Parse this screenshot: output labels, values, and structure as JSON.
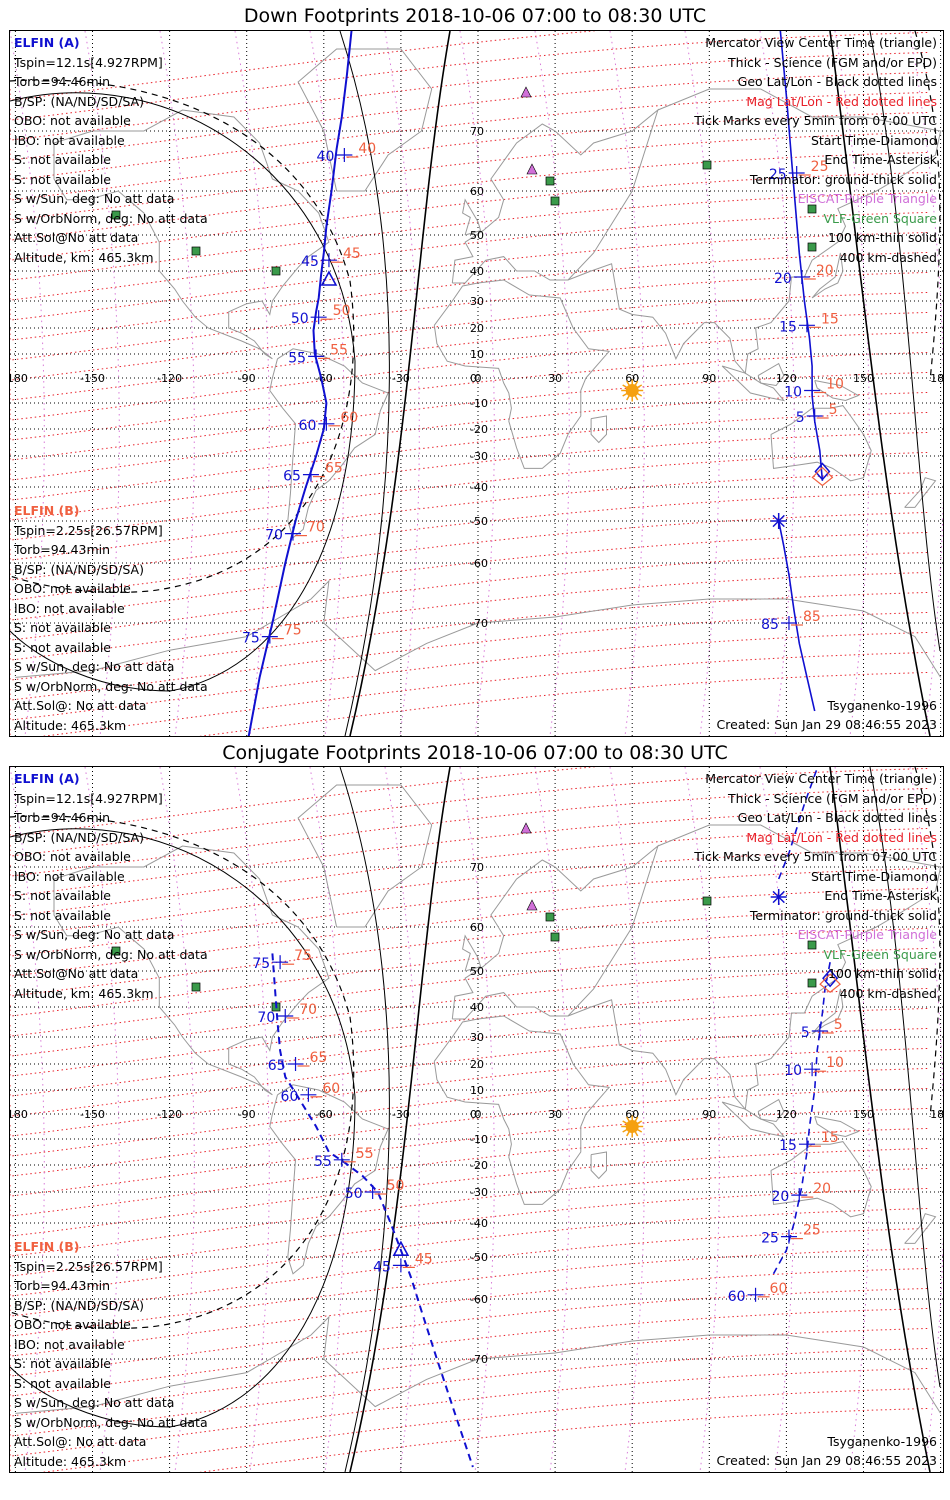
{
  "panels": [
    {
      "title": "Down Footprints 2018-10-06 07:00 to 08:30 UTC",
      "elfin_a": {
        "header": "ELFIN (A)",
        "lines": [
          "Tspin=12.1s[4.927RPM]",
          "Torb=94.46min",
          "B/SP: (NA/ND/SD/SA)",
          "OBO: not available",
          "IBO: not available",
          "S: not available",
          "S: not available",
          "S w/Sun, deg: No att data",
          "S w/OrbNorm, deg: No att data",
          "Att.Sol@No att data",
          "Altitude, km: 465.3km"
        ]
      },
      "elfin_b": {
        "header": "ELFIN (B)",
        "lines": [
          "Tspin=2.25s[26.57RPM]",
          "Torb=94.43min",
          "B/SP: (NA/ND/SD/SA)",
          "OBO: not available",
          "IBO: not available",
          "S: not available",
          "S: not available",
          "S w/Sun, deg: No att data",
          "S w/OrbNorm, deg: No att data",
          "Att.Sol@: No att data",
          "Altitude: 465.3km"
        ]
      },
      "legend": [
        {
          "text": "Mercator View Center Time (triangle)",
          "color": "#000000"
        },
        {
          "text": "Thick - Science (FGM and/or EPD)",
          "color": "#000000"
        },
        {
          "text": "Geo Lat/Lon - Black dotted lines",
          "color": "#000000"
        },
        {
          "text": "Mag Lat/Lon - Red dotted lines",
          "color": "#e8212a"
        },
        {
          "text": "Tick Marks every 5min from 07:00 UTC",
          "color": "#000000"
        },
        {
          "text": "Start Time-Diamond",
          "color": "#000000"
        },
        {
          "text": "End Time-Asterisk",
          "color": "#000000"
        },
        {
          "text": "Terminator: ground-thick solid",
          "color": "#000000"
        },
        {
          "text": "EISCAT-Purple Triangle",
          "color": "#d070d8"
        },
        {
          "text": "VLF-Green Square",
          "color": "#3a9a4a"
        },
        {
          "text": "100 km-thin solid",
          "color": "#000000"
        },
        {
          "text": "400 km-dashed",
          "color": "#000000"
        }
      ],
      "model": "Tsyganenko-1996",
      "created": "Created: Sun Jan 29 08:46:55 2023",
      "lat_labels": [
        "70",
        "60",
        "50",
        "40",
        "30",
        "20",
        "10",
        "0",
        "-10",
        "-20",
        "-30",
        "-40",
        "-50",
        "-60",
        "-70"
      ],
      "lon_labels": [
        "-180",
        "-150",
        "-120",
        "-90",
        "-60",
        "-30",
        "0",
        "30",
        "60",
        "90",
        "120",
        "150",
        "180"
      ],
      "track_a": [
        {
          "lon": -43,
          "lat": 112
        },
        {
          "lon": -46,
          "lat": 95
        },
        {
          "lon": -49,
          "lat": 86
        },
        {
          "lon": -51,
          "lat": 78
        },
        {
          "lon": -53,
          "lat": 72
        },
        {
          "lon": -55,
          "lat": 67
        },
        {
          "lon": -57,
          "lat": 60
        },
        {
          "lon": -59,
          "lat": 52
        },
        {
          "lon": -60,
          "lat": 45
        },
        {
          "lon": -61,
          "lat": 39
        },
        {
          "lon": -62,
          "lat": 31
        },
        {
          "lon": -63,
          "lat": 26
        },
        {
          "lon": -64,
          "lat": 19
        },
        {
          "lon": -63.5,
          "lat": 10
        },
        {
          "lon": -61,
          "lat": 0
        },
        {
          "lon": -59,
          "lat": -10
        },
        {
          "lon": -60,
          "lat": -20
        },
        {
          "lon": -63,
          "lat": -30
        },
        {
          "lon": -67,
          "lat": -40
        },
        {
          "lon": -71,
          "lat": -50
        },
        {
          "lon": -75,
          "lat": -60
        },
        {
          "lon": -80,
          "lat": -70
        },
        {
          "lon": -85,
          "lat": -78
        },
        {
          "lon": -91,
          "lat": -87
        }
      ],
      "track_b": [
        {
          "lon": 134,
          "lat": -38
        },
        {
          "lon": 133,
          "lat": -28
        },
        {
          "lon": 131,
          "lat": -17
        },
        {
          "lon": 130,
          "lat": -7
        },
        {
          "lon": 130,
          "lat": 5
        },
        {
          "lon": 129,
          "lat": 16
        },
        {
          "lon": 127,
          "lat": 30
        },
        {
          "lon": 125,
          "lat": 45
        },
        {
          "lon": 123,
          "lat": 60
        },
        {
          "lon": 120,
          "lat": 75
        },
        {
          "lon": 117,
          "lat": 88
        }
      ],
      "end_b": {
        "lon": 117,
        "lat": -50
      },
      "track_b2": [
        {
          "lon": 117,
          "lat": -50
        },
        {
          "lon": 119,
          "lat": -56
        },
        {
          "lon": 121,
          "lat": -62
        },
        {
          "lon": 123,
          "lat": -68
        },
        {
          "lon": 125,
          "lat": -73
        },
        {
          "lon": 128,
          "lat": -78
        },
        {
          "lon": 131,
          "lat": -82
        }
      ],
      "ticks_a": [
        {
          "label": "40",
          "lon": -52,
          "lat": 66
        },
        {
          "label": "45",
          "lon": -58,
          "lat": 43
        },
        {
          "label": "50",
          "lon": -62,
          "lat": 24
        },
        {
          "label": "55",
          "lon": -63,
          "lat": 9
        },
        {
          "label": "60",
          "lon": -59,
          "lat": -18
        },
        {
          "label": "65",
          "lon": -65,
          "lat": -36
        },
        {
          "label": "70",
          "lon": -72,
          "lat": -53
        },
        {
          "label": "75",
          "lon": -81,
          "lat": -72
        }
      ],
      "ticks_b": [
        {
          "label": "25",
          "lon": 124,
          "lat": 63
        },
        {
          "label": "20",
          "lon": 126,
          "lat": 38
        },
        {
          "label": "15",
          "lon": 128,
          "lat": 21
        },
        {
          "label": "10",
          "lon": 130,
          "lat": -5
        },
        {
          "label": "5",
          "lon": 131,
          "lat": -15
        },
        {
          "label": "85",
          "lon": 121,
          "lat": -70
        }
      ],
      "center_triangle": {
        "lon": -58,
        "lat": 37
      },
      "diamond": {
        "lon": 134,
        "lat": -35
      },
      "sun": {
        "lon": 60,
        "lat": -5
      }
    },
    {
      "title": "Conjugate Footprints 2018-10-06 07:00 to 08:30 UTC",
      "elfin_a": {
        "header": "ELFIN (A)",
        "lines": [
          "Tspin=12.1s[4.927RPM]",
          "Torb=94.46min",
          "B/SP: (NA/ND/SD/SA)",
          "OBO: not available",
          "IBO: not available",
          "S: not available",
          "S: not available",
          "S w/Sun, deg: No att data",
          "S w/OrbNorm, deg: No att data",
          "Att.Sol@No att data",
          "Altitude, km: 465.3km"
        ]
      },
      "elfin_b": {
        "header": "ELFIN (B)",
        "lines": [
          "Tspin=2.25s[26.57RPM]",
          "Torb=94.43min",
          "B/SP: (NA/ND/SD/SA)",
          "OBO: not available",
          "IBO: not available",
          "S: not available",
          "S: not available",
          "S w/Sun, deg: No att data",
          "S w/OrbNorm, deg: No att data",
          "Att.Sol@: No att data",
          "Altitude: 465.3km"
        ]
      },
      "legend": [
        {
          "text": "Mercator View Center Time (triangle)",
          "color": "#000000"
        },
        {
          "text": "Thick - Science (FGM and/or EPD)",
          "color": "#000000"
        },
        {
          "text": "Geo Lat/Lon - Black dotted lines",
          "color": "#000000"
        },
        {
          "text": "Mag Lat/Lon - Red dotted lines",
          "color": "#e8212a"
        },
        {
          "text": "Tick Marks every 5min from 07:00 UTC",
          "color": "#000000"
        },
        {
          "text": "Start Time-Diamond",
          "color": "#000000"
        },
        {
          "text": "End Time-Asterisk",
          "color": "#000000"
        },
        {
          "text": "Terminator: ground-thick solid",
          "color": "#000000"
        },
        {
          "text": "EISCAT-Purple Triangle",
          "color": "#d070d8"
        },
        {
          "text": "VLF-Green Square",
          "color": "#3a9a4a"
        },
        {
          "text": "100 km-thin solid",
          "color": "#000000"
        },
        {
          "text": "400 km-dashed",
          "color": "#000000"
        }
      ],
      "model": "Tsyganenko-1996",
      "created": "Created: Sun Jan 29 08:46:55 2023",
      "lat_labels": [
        "70",
        "60",
        "50",
        "40",
        "30",
        "20",
        "10",
        "0",
        "-10",
        "-20",
        "-30",
        "-40",
        "-50",
        "-60",
        "-70"
      ],
      "lon_labels": [
        "-180",
        "-150",
        "-120",
        "-90",
        "-60",
        "-30",
        "0",
        "30",
        "60",
        "90",
        "120",
        "150",
        "180"
      ],
      "track_a": [
        {
          "lon": -80,
          "lat": 54
        },
        {
          "lon": -79,
          "lat": 45
        },
        {
          "lon": -78,
          "lat": 35
        },
        {
          "lon": -77,
          "lat": 25
        },
        {
          "lon": -75,
          "lat": 15
        },
        {
          "lon": -70,
          "lat": 7
        },
        {
          "lon": -63,
          "lat": -5
        },
        {
          "lon": -58,
          "lat": -15
        },
        {
          "lon": -52,
          "lat": -19
        },
        {
          "lon": -45,
          "lat": -24
        },
        {
          "lon": -39,
          "lat": -30
        },
        {
          "lon": -34,
          "lat": -40
        },
        {
          "lon": -30,
          "lat": -48
        },
        {
          "lon": -26,
          "lat": -55
        },
        {
          "lon": -22,
          "lat": -62
        },
        {
          "lon": -16,
          "lat": -70
        },
        {
          "lon": -9,
          "lat": -78
        },
        {
          "lon": -2,
          "lat": -84
        }
      ],
      "track_b": [
        {
          "lon": 137,
          "lat": 52
        },
        {
          "lon": 135,
          "lat": 45
        },
        {
          "lon": 134,
          "lat": 38
        },
        {
          "lon": 132,
          "lat": 25
        },
        {
          "lon": 131,
          "lat": 10
        },
        {
          "lon": 129,
          "lat": -5
        },
        {
          "lon": 128,
          "lat": -15
        },
        {
          "lon": 126,
          "lat": -28
        },
        {
          "lon": 123,
          "lat": -40
        },
        {
          "lon": 120,
          "lat": -48
        },
        {
          "lon": 115,
          "lat": -54
        }
      ],
      "end_b": {
        "lon": 117,
        "lat": 65
      },
      "track_b2": [
        {
          "lon": 117,
          "lat": 68
        },
        {
          "lon": 121,
          "lat": 72
        },
        {
          "lon": 127,
          "lat": 79
        },
        {
          "lon": 133,
          "lat": 86
        }
      ],
      "ticks_a": [
        {
          "label": "75",
          "lon": -77,
          "lat": 52
        },
        {
          "label": "70",
          "lon": -75,
          "lat": 37
        },
        {
          "label": "65",
          "lon": -71,
          "lat": 20
        },
        {
          "label": "60",
          "lon": -66,
          "lat": 8
        },
        {
          "label": "55",
          "lon": -53,
          "lat": -18
        },
        {
          "label": "50",
          "lon": -41,
          "lat": -30
        },
        {
          "label": "45",
          "lon": -30,
          "lat": -52
        }
      ],
      "ticks_b": [
        {
          "label": "5",
          "lon": 133,
          "lat": 32
        },
        {
          "label": "10",
          "lon": 130,
          "lat": 18
        },
        {
          "label": "15",
          "lon": 128,
          "lat": -12
        },
        {
          "label": "20",
          "lon": 125,
          "lat": -31
        },
        {
          "label": "25",
          "lon": 121,
          "lat": -44
        },
        {
          "label": "60",
          "lon": 108,
          "lat": -59
        }
      ],
      "center_triangle": {
        "lon": -30,
        "lat": -48
      },
      "diamond": {
        "lon": 137,
        "lat": 48
      },
      "sun": {
        "lon": 60,
        "lat": -5
      }
    }
  ],
  "colors": {
    "sat_a": "#1010d0",
    "sat_b": "#f06040",
    "mag_grid": "#e8212a",
    "geo_grid": "#000000",
    "coast": "#9a9a9a",
    "eiscat": "#d070d8",
    "vlf": "#3a9a4a",
    "sun": "#f5a010"
  }
}
